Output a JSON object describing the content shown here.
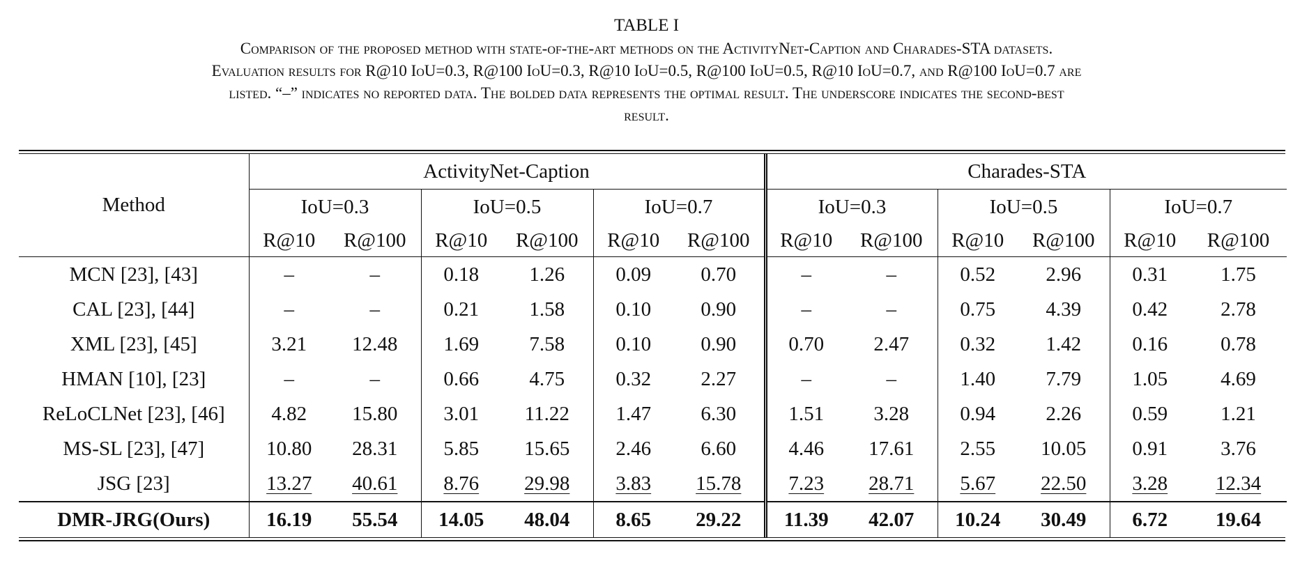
{
  "caption": {
    "table_label": "TABLE I",
    "lines": [
      "Comparison of the proposed method with state-of-the-art methods on the ActivityNet-Caption and Charades-STA datasets.",
      "Evaluation results for R@10 IoU=0.3, R@100 IoU=0.3, R@10 IoU=0.5, R@100 IoU=0.5, R@10 IoU=0.7, and R@100 IoU=0.7 are",
      "listed. “–” indicates no reported data. The bolded data represents the optimal result. The underscore indicates the second-best",
      "result."
    ]
  },
  "table": {
    "method_header": "Method",
    "datasets": [
      "ActivityNet-Caption",
      "Charades-STA"
    ],
    "iou_headers": [
      "IoU=0.3",
      "IoU=0.5",
      "IoU=0.7",
      "IoU=0.3",
      "IoU=0.5",
      "IoU=0.7"
    ],
    "recall_headers": [
      "R@10",
      "R@100",
      "R@10",
      "R@100",
      "R@10",
      "R@100",
      "R@10",
      "R@100",
      "R@10",
      "R@100",
      "R@10",
      "R@100"
    ],
    "rows": [
      {
        "method": "MCN [23], [43]",
        "values": [
          "–",
          "–",
          "0.18",
          "1.26",
          "0.09",
          "0.70",
          "–",
          "–",
          "0.52",
          "2.96",
          "0.31",
          "1.75"
        ]
      },
      {
        "method": "CAL [23], [44]",
        "values": [
          "–",
          "–",
          "0.21",
          "1.58",
          "0.10",
          "0.90",
          "–",
          "–",
          "0.75",
          "4.39",
          "0.42",
          "2.78"
        ]
      },
      {
        "method": "XML [23], [45]",
        "values": [
          "3.21",
          "12.48",
          "1.69",
          "7.58",
          "0.10",
          "0.90",
          "0.70",
          "2.47",
          "0.32",
          "1.42",
          "0.16",
          "0.78"
        ]
      },
      {
        "method": "HMAN [10], [23]",
        "values": [
          "–",
          "–",
          "0.66",
          "4.75",
          "0.32",
          "2.27",
          "–",
          "–",
          "1.40",
          "7.79",
          "1.05",
          "4.69"
        ]
      },
      {
        "method": "ReLoCLNet [23], [46]",
        "values": [
          "4.82",
          "15.80",
          "3.01",
          "11.22",
          "1.47",
          "6.30",
          "1.51",
          "3.28",
          "0.94",
          "2.26",
          "0.59",
          "1.21"
        ]
      },
      {
        "method": "MS-SL [23], [47]",
        "values": [
          "10.80",
          "28.31",
          "5.85",
          "15.65",
          "2.46",
          "6.60",
          "4.46",
          "17.61",
          "2.55",
          "10.05",
          "0.91",
          "3.76"
        ]
      },
      {
        "method": "JSG [23]",
        "values": [
          "13.27",
          "40.61",
          "8.76",
          "29.98",
          "3.83",
          "15.78",
          "7.23",
          "28.71",
          "5.67",
          "22.50",
          "3.28",
          "12.34"
        ],
        "underlined": true
      },
      {
        "method": "DMR-JRG(Ours)",
        "values": [
          "16.19",
          "55.54",
          "14.05",
          "48.04",
          "8.65",
          "29.22",
          "11.39",
          "42.07",
          "10.24",
          "30.49",
          "6.72",
          "19.64"
        ],
        "bold": true
      }
    ]
  }
}
